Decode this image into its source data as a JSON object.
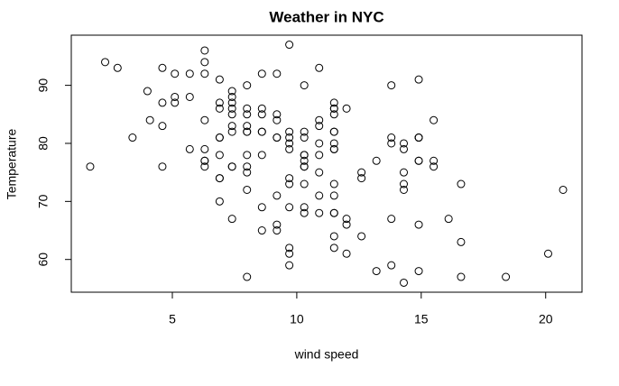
{
  "chart_data": {
    "type": "scatter",
    "title": "Weather in NYC",
    "x_label": "wind speed",
    "y_label": "Temperature",
    "series": [
      {
        "x": [
          7.4,
          8.0,
          12.6,
          11.5,
          14.3,
          14.9,
          8.6,
          13.8,
          20.1,
          8.6,
          6.9,
          9.7,
          9.2,
          10.9,
          13.2,
          11.5,
          12.0,
          18.4,
          11.5,
          9.7,
          9.7,
          16.6,
          9.7,
          12.0,
          16.6,
          14.9,
          8.0,
          12.0,
          14.9,
          5.7,
          7.4,
          8.6,
          9.7,
          16.1,
          9.2,
          8.6,
          14.3,
          9.7,
          6.9,
          13.8,
          11.5,
          10.9,
          9.2,
          8.0,
          13.8,
          11.5,
          14.9,
          20.7,
          9.2,
          11.5,
          10.3,
          6.3,
          1.7,
          4.6,
          6.3,
          8.0,
          8.0,
          10.3,
          11.5,
          14.9,
          8.0,
          4.1,
          9.2,
          9.2,
          10.9,
          4.6,
          10.9,
          5.1,
          6.3,
          5.7,
          7.4,
          8.6,
          14.3,
          14.9,
          14.9,
          14.3,
          6.9,
          10.3,
          6.3,
          5.1,
          11.5,
          6.9,
          9.7,
          11.5,
          8.6,
          8.0,
          8.6,
          12.0,
          7.4,
          7.4,
          7.4,
          9.2,
          6.9,
          13.8,
          7.4,
          6.9,
          7.4,
          4.6,
          4.0,
          10.3,
          8.0,
          8.6,
          11.5,
          11.5,
          11.5,
          9.7,
          11.5,
          10.3,
          6.3,
          7.4,
          10.9,
          10.3,
          15.5,
          14.3,
          12.6,
          9.7,
          3.4,
          8.0,
          5.7,
          9.7,
          2.3,
          6.3,
          6.3,
          6.9,
          5.1,
          2.8,
          4.6,
          7.4,
          15.5,
          10.9,
          10.3,
          10.9,
          9.7,
          14.9,
          15.5,
          6.3,
          10.9,
          11.5,
          6.9,
          13.8,
          10.3,
          10.3,
          8.0,
          12.6,
          9.2,
          10.3,
          10.3,
          16.6,
          6.9,
          13.2,
          14.3,
          8.0,
          11.5
        ],
        "values": [
          67,
          72,
          74,
          62,
          56,
          66,
          65,
          59,
          61,
          69,
          74,
          69,
          66,
          68,
          58,
          64,
          66,
          57,
          68,
          62,
          59,
          73,
          61,
          61,
          57,
          58,
          57,
          67,
          81,
          79,
          76,
          78,
          74,
          67,
          84,
          85,
          79,
          82,
          87,
          90,
          87,
          93,
          92,
          82,
          80,
          79,
          77,
          72,
          65,
          73,
          76,
          77,
          76,
          76,
          76,
          75,
          78,
          73,
          80,
          77,
          83,
          84,
          85,
          81,
          84,
          83,
          83,
          88,
          92,
          92,
          89,
          82,
          73,
          81,
          91,
          80,
          81,
          82,
          84,
          87,
          85,
          74,
          81,
          82,
          86,
          85,
          82,
          86,
          88,
          86,
          83,
          81,
          81,
          81,
          82,
          86,
          85,
          87,
          89,
          90,
          90,
          92,
          86,
          86,
          82,
          80,
          79,
          77,
          79,
          76,
          78,
          78,
          77,
          72,
          75,
          79,
          81,
          86,
          88,
          97,
          94,
          96,
          94,
          91,
          92,
          93,
          93,
          87,
          84,
          80,
          78,
          75,
          73,
          81,
          76,
          77,
          71,
          71,
          78,
          67,
          76,
          68,
          82,
          64,
          71,
          81,
          69,
          63,
          70,
          77,
          75,
          76,
          68
        ],
        "color": "#000000"
      }
    ],
    "xlim": [
      0.94,
      21.46
    ],
    "ylim": [
      54.36,
      98.64
    ],
    "xticks": [
      5,
      10,
      15,
      20
    ],
    "yticks": [
      60,
      70,
      80,
      90
    ]
  }
}
